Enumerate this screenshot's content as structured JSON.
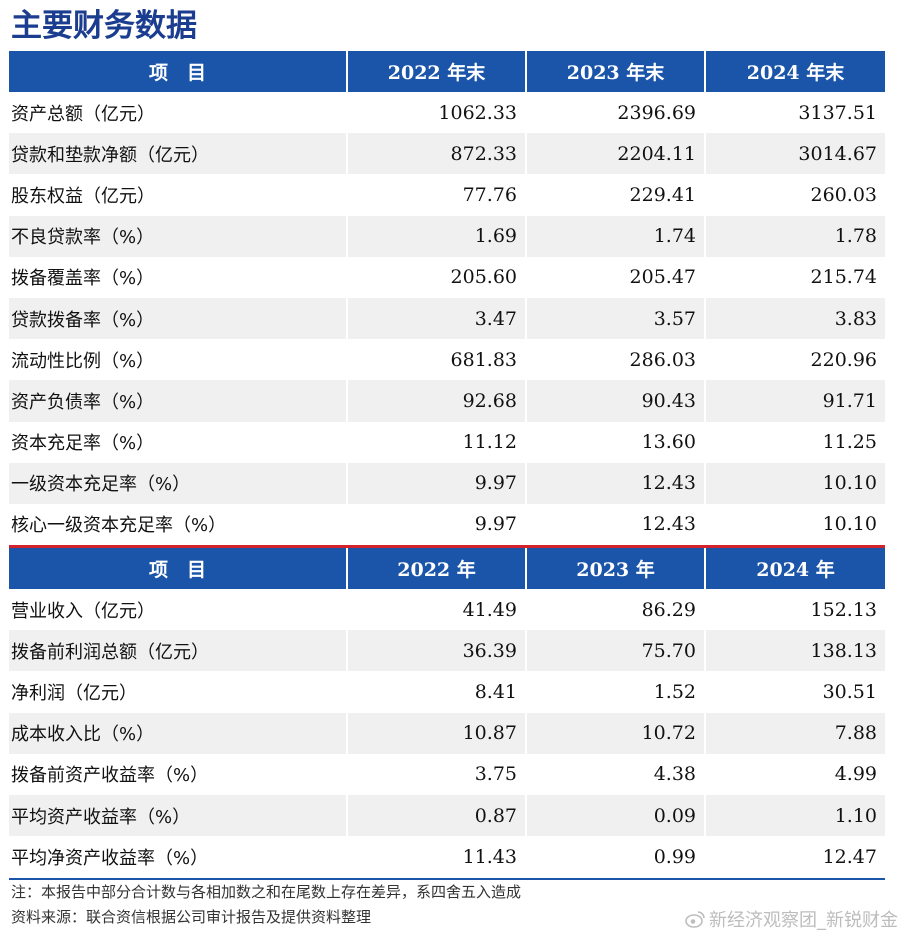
{
  "title": "主要财务数据",
  "table1": {
    "headers": [
      "项　目",
      "2022 年末",
      "2023 年末",
      "2024 年末"
    ],
    "rows": [
      {
        "label": "资产总额（亿元）",
        "v2022": "1062.33",
        "v2023": "2396.69",
        "v2024": "3137.51"
      },
      {
        "label": "贷款和垫款净额（亿元）",
        "v2022": "872.33",
        "v2023": "2204.11",
        "v2024": "3014.67"
      },
      {
        "label": "股东权益（亿元）",
        "v2022": "77.76",
        "v2023": "229.41",
        "v2024": "260.03"
      },
      {
        "label": "不良贷款率（%）",
        "v2022": "1.69",
        "v2023": "1.74",
        "v2024": "1.78"
      },
      {
        "label": "拨备覆盖率（%）",
        "v2022": "205.60",
        "v2023": "205.47",
        "v2024": "215.74"
      },
      {
        "label": "贷款拨备率（%）",
        "v2022": "3.47",
        "v2023": "3.57",
        "v2024": "3.83"
      },
      {
        "label": "流动性比例（%）",
        "v2022": "681.83",
        "v2023": "286.03",
        "v2024": "220.96"
      },
      {
        "label": "资产负债率（%）",
        "v2022": "92.68",
        "v2023": "90.43",
        "v2024": "91.71"
      },
      {
        "label": "资本充足率（%）",
        "v2022": "11.12",
        "v2023": "13.60",
        "v2024": "11.25"
      },
      {
        "label": "一级资本充足率（%）",
        "v2022": "9.97",
        "v2023": "12.43",
        "v2024": "10.10"
      },
      {
        "label": "核心一级资本充足率（%）",
        "v2022": "9.97",
        "v2023": "12.43",
        "v2024": "10.10"
      }
    ]
  },
  "table2": {
    "headers": [
      "项　目",
      "2022 年",
      "2023 年",
      "2024 年"
    ],
    "rows": [
      {
        "label": "营业收入（亿元）",
        "v2022": "41.49",
        "v2023": "86.29",
        "v2024": "152.13"
      },
      {
        "label": "拨备前利润总额（亿元）",
        "v2022": "36.39",
        "v2023": "75.70",
        "v2024": "138.13"
      },
      {
        "label": "净利润（亿元）",
        "v2022": "8.41",
        "v2023": "1.52",
        "v2024": "30.51"
      },
      {
        "label": "成本收入比（%）",
        "v2022": "10.87",
        "v2023": "10.72",
        "v2024": "7.88"
      },
      {
        "label": "拨备前资产收益率（%）",
        "v2022": "3.75",
        "v2023": "4.38",
        "v2024": "4.99"
      },
      {
        "label": "平均资产收益率（%）",
        "v2022": "0.87",
        "v2023": "0.09",
        "v2024": "1.10"
      },
      {
        "label": "平均净资产收益率（%）",
        "v2022": "11.43",
        "v2023": "0.99",
        "v2024": "12.47"
      }
    ]
  },
  "notes": {
    "note1": "注：本报告中部分合计数与各相加数之和在尾数上存在差异，系四舍五入造成",
    "note2": "资料来源：联合资信根据公司审计报告及提供资料整理"
  },
  "watermark": {
    "text": "新经济观察团_新锐财金",
    "icon": "weibo-icon"
  },
  "colors": {
    "header_bg": "#1b55a9",
    "title": "#1a3d8f",
    "separator": "#d2222b",
    "shade": "#f0f0f0"
  }
}
